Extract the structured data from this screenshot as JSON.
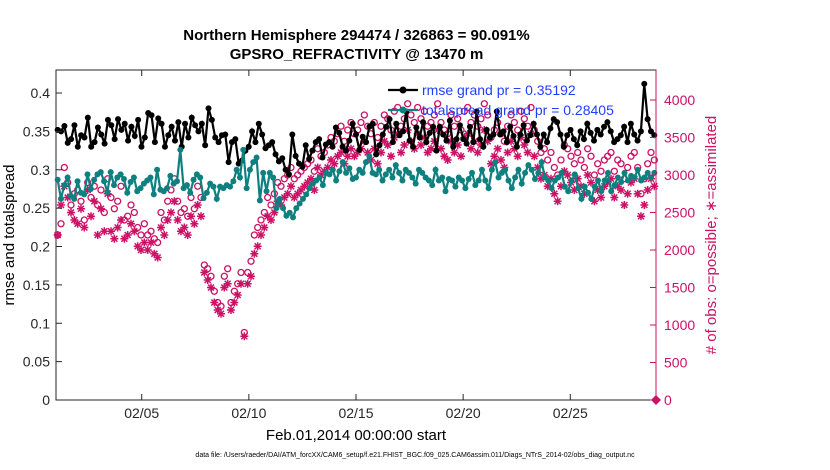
{
  "chart_data": {
    "type": "line",
    "title": "Northern Hemisphere 294474 / 326863 = 90.091%",
    "subtitle": "GPSRO_REFRACTIVITY @ 13470 m",
    "xlabel": "Feb.01,2014 00:00:00 start",
    "ylabel_left": "rmse and totalspread",
    "ylabel_right": "# of obs: o=possible; ∗=assimilated",
    "x_range_days": [
      1,
      29
    ],
    "ylim_left": [
      0,
      0.43
    ],
    "ylim_right": [
      0,
      4400
    ],
    "xticks": [
      {
        "day": 5,
        "label": "02/05"
      },
      {
        "day": 10,
        "label": "02/10"
      },
      {
        "day": 15,
        "label": "02/15"
      },
      {
        "day": 20,
        "label": "02/20"
      },
      {
        "day": 25,
        "label": "02/25"
      }
    ],
    "yticks_left": [
      "0",
      "0.05",
      "0.1",
      "0.15",
      "0.2",
      "0.25",
      "0.3",
      "0.35",
      "0.4"
    ],
    "yticks_right": [
      "0",
      "500",
      "1000",
      "1500",
      "2000",
      "2500",
      "3000",
      "3500",
      "4000"
    ],
    "legend_position": "top-right",
    "series": [
      {
        "name": "rmse grand pr = 0.35192",
        "axis": "left",
        "color": "#000000",
        "marker": "filled-circle",
        "values": [
          0.352,
          0.35,
          0.357,
          0.335,
          0.34,
          0.358,
          0.33,
          0.345,
          0.342,
          0.368,
          0.33,
          0.336,
          0.355,
          0.346,
          0.334,
          0.365,
          0.358,
          0.34,
          0.366,
          0.352,
          0.36,
          0.338,
          0.356,
          0.344,
          0.365,
          0.33,
          0.342,
          0.374,
          0.371,
          0.336,
          0.367,
          0.36,
          0.33,
          0.345,
          0.356,
          0.338,
          0.362,
          0.33,
          0.36,
          0.342,
          0.368,
          0.358,
          0.35,
          0.36,
          0.332,
          0.38,
          0.365,
          0.342,
          0.336,
          0.345,
          0.346,
          0.31,
          0.336,
          0.34,
          0.308,
          0.312,
          0.325,
          0.33,
          0.35,
          0.336,
          0.36,
          0.346,
          0.328,
          0.332,
          0.336,
          0.32,
          0.311,
          0.315,
          0.3,
          0.294,
          0.346,
          0.318,
          0.308,
          0.304,
          0.332,
          0.314,
          0.325,
          0.336,
          0.34,
          0.316,
          0.333,
          0.336,
          0.33,
          0.355,
          0.348,
          0.33,
          0.325,
          0.338,
          0.36,
          0.346,
          0.326,
          0.343,
          0.336,
          0.356,
          0.36,
          0.32,
          0.332,
          0.346,
          0.356,
          0.366,
          0.336,
          0.36,
          0.345,
          0.35,
          0.376,
          0.338,
          0.33,
          0.355,
          0.342,
          0.362,
          0.336,
          0.348,
          0.356,
          0.325,
          0.356,
          0.346,
          0.338,
          0.364,
          0.33,
          0.34,
          0.358,
          0.34,
          0.334,
          0.356,
          0.336,
          0.376,
          0.34,
          0.33,
          0.352,
          0.342,
          0.346,
          0.376,
          0.346,
          0.35,
          0.336,
          0.356,
          0.344,
          0.33,
          0.346,
          0.358,
          0.338,
          0.345,
          0.36,
          0.346,
          0.33,
          0.346,
          0.336,
          0.354,
          0.366,
          0.362,
          0.346,
          0.33,
          0.345,
          0.352,
          0.34,
          0.332,
          0.35,
          0.34,
          0.36,
          0.348,
          0.338,
          0.352,
          0.346,
          0.356,
          0.362,
          0.35,
          0.336,
          0.34,
          0.345,
          0.356,
          0.336,
          0.36,
          0.346,
          0.338,
          0.35,
          0.412,
          0.366,
          0.35,
          0.345
        ]
      },
      {
        "name": "totalspread grand pr = 0.28405",
        "axis": "left",
        "color": "#0f8080",
        "marker": "filled-circle",
        "values": [
          0.287,
          0.262,
          0.28,
          0.29,
          0.266,
          0.262,
          0.285,
          0.27,
          0.268,
          0.294,
          0.275,
          0.287,
          0.294,
          0.297,
          0.285,
          0.271,
          0.297,
          0.28,
          0.29,
          0.294,
          0.288,
          0.27,
          0.284,
          0.29,
          0.272,
          0.276,
          0.282,
          0.286,
          0.29,
          0.268,
          0.3,
          0.274,
          0.272,
          0.276,
          0.292,
          0.282,
          0.285,
          0.326,
          0.276,
          0.28,
          0.27,
          0.287,
          0.294,
          0.29,
          0.263,
          0.27,
          0.282,
          0.278,
          0.262,
          0.278,
          0.276,
          0.28,
          0.278,
          0.285,
          0.3,
          0.29,
          0.326,
          0.276,
          0.3,
          0.31,
          0.316,
          0.26,
          0.296,
          0.272,
          0.296,
          0.29,
          0.25,
          0.262,
          0.25,
          0.24,
          0.244,
          0.238,
          0.25,
          0.256,
          0.262,
          0.268,
          0.276,
          0.282,
          0.286,
          0.29,
          0.28,
          0.296,
          0.294,
          0.3,
          0.286,
          0.298,
          0.31,
          0.296,
          0.302,
          0.288,
          0.29,
          0.3,
          0.296,
          0.31,
          0.318,
          0.296,
          0.294,
          0.3,
          0.286,
          0.294,
          0.3,
          0.29,
          0.306,
          0.296,
          0.286,
          0.3,
          0.296,
          0.29,
          0.282,
          0.3,
          0.296,
          0.29,
          0.286,
          0.28,
          0.3,
          0.286,
          0.29,
          0.272,
          0.288,
          0.286,
          0.278,
          0.29,
          0.286,
          0.276,
          0.288,
          0.296,
          0.28,
          0.286,
          0.3,
          0.286,
          0.276,
          0.3,
          0.31,
          0.29,
          0.296,
          0.3,
          0.286,
          0.276,
          0.29,
          0.3,
          0.282,
          0.296,
          0.306,
          0.3,
          0.288,
          0.296,
          0.31,
          0.29,
          0.286,
          0.276,
          0.286,
          0.29,
          0.296,
          0.278,
          0.272,
          0.286,
          0.294,
          0.276,
          0.262,
          0.278,
          0.27,
          0.262,
          0.278,
          0.286,
          0.272,
          0.286,
          0.296,
          0.272,
          0.28,
          0.29,
          0.284,
          0.296,
          0.286,
          0.292,
          0.29,
          0.3,
          0.286,
          0.29,
          0.296,
          0.29,
          0.296
        ]
      },
      {
        "name": "possible",
        "axis": "right",
        "color": "#cc1166",
        "marker": "open-circle",
        "values": [
          2200,
          2350,
          3100,
          2900,
          2600,
          2750,
          2800,
          2650,
          2400,
          2900,
          2700,
          2850,
          2600,
          2800,
          2500,
          2950,
          2700,
          2550,
          2650,
          2850,
          2400,
          2450,
          2600,
          2500,
          2300,
          2200,
          2350,
          2200,
          2250,
          2150,
          2100,
          2500,
          2400,
          2650,
          2800,
          2950,
          2650,
          2500,
          2550,
          2450,
          2700,
          2550,
          2850,
          2700,
          1800,
          1750,
          1650,
          1450,
          1300,
          1250,
          1650,
          1750,
          1300,
          1450,
          1550,
          1700,
          900,
          1700,
          1850,
          2200,
          2300,
          2400,
          2500,
          2700,
          2600,
          2750,
          2900,
          2850,
          2950,
          3000,
          3100,
          2950,
          3000,
          3050,
          3100,
          3150,
          3200,
          3050,
          3350,
          3250,
          3300,
          3400,
          3500,
          3450,
          3550,
          3650,
          3450,
          3600,
          3700,
          3550,
          3600,
          3700,
          3800,
          3650,
          3550,
          3700,
          3500,
          3650,
          3800,
          3750,
          3600,
          3850,
          3900,
          3650,
          3750,
          3950,
          3800,
          3700,
          3900,
          3750,
          3850,
          3650,
          3700,
          3800,
          3950,
          3700,
          3600,
          3550,
          3800,
          3650,
          3750,
          3600,
          3850,
          3900,
          3700,
          3800,
          3650,
          3750,
          3950,
          3800,
          3500,
          3600,
          3700,
          3550,
          3450,
          3650,
          3800,
          3700,
          3600,
          3850,
          3750,
          3650,
          3900,
          3600,
          3450,
          3300,
          3350,
          3200,
          3300,
          3100,
          3000,
          3200,
          3400,
          3350,
          3250,
          3150,
          3300,
          3200,
          3100,
          3350,
          3250,
          3000,
          3150,
          3050,
          3200,
          3250,
          3300,
          3050,
          3200,
          3150,
          2950,
          3100,
          3250,
          3300,
          3100,
          2750,
          2950,
          3150,
          3300,
          3200
        ]
      },
      {
        "name": "assimilated",
        "axis": "right",
        "color": "#cc1166",
        "marker": "asterisk",
        "values": [
          2200,
          2600,
          2850,
          2700,
          2500,
          2400,
          2350,
          2550,
          2300,
          2800,
          2450,
          2650,
          2200,
          2550,
          2250,
          2750,
          2250,
          2150,
          2300,
          2400,
          2150,
          2200,
          2350,
          2250,
          2050,
          2000,
          2100,
          2000,
          2100,
          1950,
          1900,
          2300,
          2200,
          2400,
          2500,
          2650,
          2400,
          2250,
          2300,
          2200,
          2450,
          2350,
          2600,
          2450,
          1700,
          1600,
          1500,
          1300,
          1200,
          1150,
          1500,
          1550,
          1200,
          1300,
          1400,
          1550,
          850,
          1550,
          1650,
          1950,
          2050,
          2200,
          2300,
          2450,
          2400,
          2500,
          2650,
          2600,
          2700,
          2750,
          2850,
          2700,
          2750,
          2800,
          2850,
          2900,
          2950,
          2800,
          3100,
          3000,
          3050,
          3100,
          3200,
          3150,
          3250,
          3300,
          3150,
          3250,
          3350,
          3250,
          3300,
          3350,
          3450,
          3300,
          3200,
          3350,
          3150,
          3300,
          3450,
          3400,
          3250,
          3500,
          3550,
          3300,
          3400,
          3600,
          3450,
          3350,
          3550,
          3400,
          3500,
          3300,
          3350,
          3450,
          3600,
          3350,
          3250,
          3200,
          3450,
          3300,
          3400,
          3250,
          3500,
          3550,
          3350,
          3450,
          3300,
          3400,
          3600,
          3450,
          3150,
          3250,
          3350,
          3200,
          3100,
          3300,
          3450,
          3350,
          3250,
          3500,
          3400,
          3300,
          3550,
          3250,
          3100,
          2950,
          3000,
          2850,
          2950,
          2750,
          2650,
          2850,
          3050,
          3000,
          2900,
          2800,
          2950,
          2850,
          2750,
          3000,
          2900,
          2650,
          2800,
          2700,
          2850,
          2900,
          2950,
          2700,
          2850,
          2800,
          2600,
          2750,
          2900,
          2950,
          2750,
          2450,
          2600,
          2800,
          2950,
          2850
        ]
      }
    ]
  },
  "footer": "data file: /Users/raeder/DAI/ATM_forcXX/CAM6_setup/f.e21.FHIST_BGC.f09_025.CAM6assim.011/Diags_NTrS_2014-02/obs_diag_output.nc",
  "colors": {
    "rmse": "#000000",
    "spread": "#0f8080",
    "obs": "#cc1166",
    "legend_text": "#1f3fff"
  }
}
